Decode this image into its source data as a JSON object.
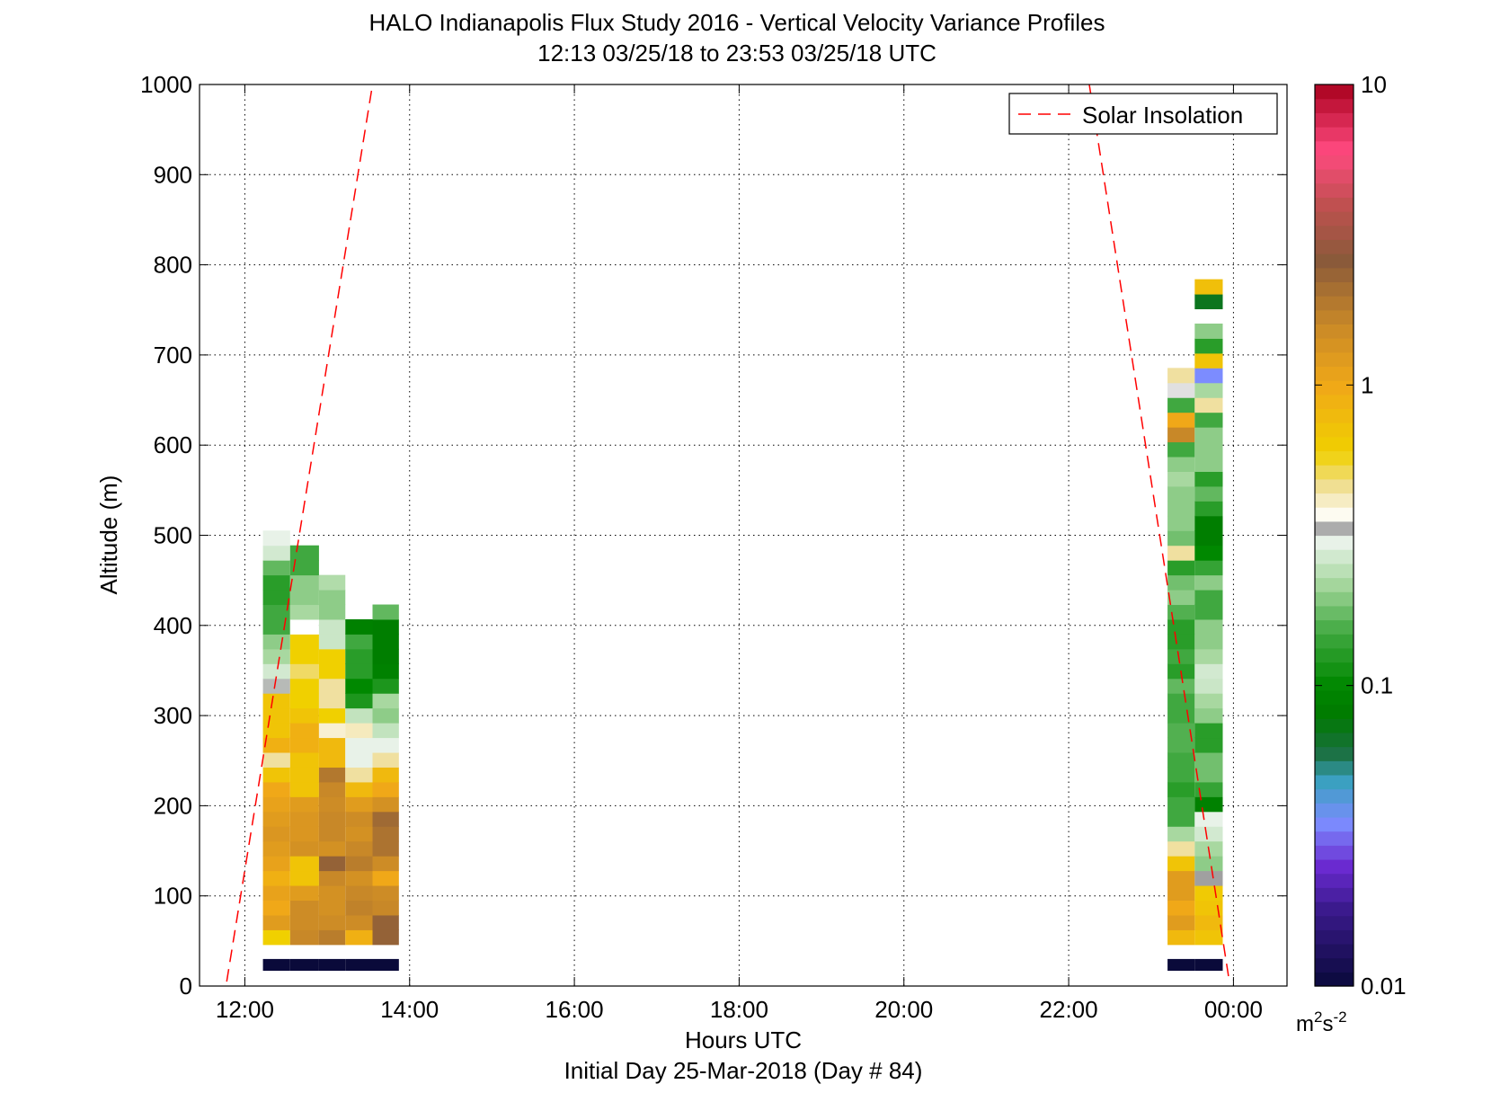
{
  "chart_data": {
    "type": "heatmap",
    "title": "HALO Indianapolis Flux Study 2016 - Vertical Velocity Variance Profiles",
    "subtitle": "12:13 03/25/18 to 23:53 03/25/18  UTC",
    "xlabel": "Hours UTC",
    "xlabel2": "Initial Day 25-Mar-2018 (Day # 84)",
    "ylabel": "Altitude (m)",
    "x_ticks": [
      12,
      14,
      16,
      18,
      20,
      22,
      24
    ],
    "x_tick_labels": [
      "12:00",
      "14:00",
      "16:00",
      "18:00",
      "20:00",
      "22:00",
      "00:00"
    ],
    "xlim": [
      11.45,
      24.65
    ],
    "y_ticks": [
      0,
      100,
      200,
      300,
      400,
      500,
      600,
      700,
      800,
      900,
      1000
    ],
    "y_tick_labels": [
      "0",
      "100",
      "200",
      "300",
      "400",
      "500",
      "600",
      "700",
      "800",
      "900",
      "1000"
    ],
    "ylim": [
      0,
      1000
    ],
    "grid": true,
    "colorbar": {
      "scale": "log",
      "range": [
        0.01,
        10
      ],
      "tick_values": [
        0.01,
        0.1,
        1,
        10
      ],
      "tick_labels": [
        "0.01",
        "0.1",
        "1",
        "10"
      ],
      "unit_base": "m",
      "unit_exp1": "2",
      "unit_mid": "s",
      "unit_exp2": "-2",
      "stops": [
        {
          "v": 0.01,
          "color": "#0a0a3a"
        },
        {
          "v": 0.018,
          "color": "#3a1a8c"
        },
        {
          "v": 0.025,
          "color": "#6a2ad0"
        },
        {
          "v": 0.035,
          "color": "#7c8cff"
        },
        {
          "v": 0.048,
          "color": "#3aa0c0"
        },
        {
          "v": 0.06,
          "color": "#1a7040"
        },
        {
          "v": 0.08,
          "color": "#007a00"
        },
        {
          "v": 0.1,
          "color": "#008800"
        },
        {
          "v": 0.15,
          "color": "#40a840"
        },
        {
          "v": 0.22,
          "color": "#a8d8a0"
        },
        {
          "v": 0.3,
          "color": "#e8f2e8"
        },
        {
          "v": 0.33,
          "color": "#a0a0a0"
        },
        {
          "v": 0.36,
          "color": "#ffffff"
        },
        {
          "v": 0.45,
          "color": "#f0e0a0"
        },
        {
          "v": 0.6,
          "color": "#f0d000"
        },
        {
          "v": 1.0,
          "color": "#f0a818"
        },
        {
          "v": 1.6,
          "color": "#c88828"
        },
        {
          "v": 2.6,
          "color": "#8a5a3a"
        },
        {
          "v": 4.0,
          "color": "#c05050"
        },
        {
          "v": 6.0,
          "color": "#ff4a80"
        },
        {
          "v": 10,
          "color": "#a8001c"
        }
      ]
    },
    "legend": {
      "entries": [
        "Solar Insolation"
      ],
      "position": "top-right"
    },
    "series": [
      {
        "name": "Solar Insolation",
        "style": "dashed",
        "color": "#ff0000",
        "segments": [
          [
            [
              11.78,
              5
            ],
            [
              13.55,
              1000
            ]
          ],
          [
            [
              22.25,
              1000
            ],
            [
              23.95,
              5
            ]
          ]
        ]
      }
    ],
    "profiles": [
      {
        "t0": 12.22,
        "t1": 12.55,
        "z0": 30,
        "base_value": 0.01,
        "dz": 16.4,
        "values": [
          0.6,
          1.2,
          1.0,
          1.1,
          0.9,
          1.1,
          1.2,
          1.3,
          1.2,
          1.1,
          1.0,
          0.7,
          0.45,
          0.9,
          0.7,
          0.7,
          0.7,
          0.32,
          0.27,
          0.22,
          0.2,
          0.15,
          0.15,
          0.13,
          0.13,
          0.17,
          0.27,
          0.3
        ]
      },
      {
        "t0": 12.55,
        "t1": 12.9,
        "z0": 30,
        "base_value": 0.01,
        "dz": 16.4,
        "values": [
          1.6,
          1.5,
          1.5,
          1.2,
          0.7,
          0.7,
          1.4,
          1.3,
          1.3,
          1.2,
          0.7,
          0.7,
          0.7,
          0.9,
          0.9,
          0.7,
          0.6,
          0.6,
          0.5,
          0.6,
          0.6,
          0.36,
          0.22,
          0.2,
          0.2,
          0.15,
          0.15
        ]
      },
      {
        "t0": 12.9,
        "t1": 13.22,
        "z0": 30,
        "base_value": 0.01,
        "dz": 16.4,
        "values": [
          1.8,
          1.5,
          1.4,
          1.4,
          1.6,
          2.4,
          1.4,
          1.6,
          1.6,
          1.5,
          1.6,
          1.9,
          0.8,
          0.8,
          0.4,
          0.6,
          0.45,
          0.45,
          0.6,
          0.6,
          0.26,
          0.26,
          0.2,
          0.2,
          0.23
        ]
      },
      {
        "t0": 13.22,
        "t1": 13.55,
        "z0": 30,
        "base_value": 0.01,
        "dz": 16.4,
        "values": [
          0.9,
          1.5,
          1.7,
          1.6,
          1.4,
          1.8,
          1.6,
          1.4,
          1.5,
          1.2,
          0.8,
          0.45,
          0.3,
          0.3,
          0.42,
          0.25,
          0.12,
          0.1,
          0.13,
          0.13,
          0.15,
          0.09
        ]
      },
      {
        "t0": 13.55,
        "t1": 13.87,
        "z0": 30,
        "base_value": 0.01,
        "dz": 16.4,
        "values": [
          2.4,
          2.4,
          1.6,
          1.5,
          1.0,
          1.5,
          2.0,
          2.0,
          2.2,
          1.4,
          1.0,
          0.8,
          0.45,
          0.3,
          0.25,
          0.2,
          0.22,
          0.12,
          0.09,
          0.085,
          0.085,
          0.085,
          0.17
        ]
      },
      {
        "t0": 23.2,
        "t1": 23.53,
        "z0": 30,
        "base_value": 0.01,
        "dz": 16.4,
        "values": [
          0.8,
          1.2,
          1.0,
          1.2,
          1.2,
          0.7,
          0.45,
          0.22,
          0.15,
          0.15,
          0.13,
          0.15,
          0.15,
          0.16,
          0.16,
          0.15,
          0.15,
          0.17,
          0.13,
          0.15,
          0.13,
          0.13,
          0.16,
          0.2,
          0.18,
          0.13,
          0.45,
          0.18,
          0.2,
          0.2,
          0.2,
          0.22,
          0.2,
          0.15,
          1.6,
          1.0,
          0.15,
          0.35,
          0.45,
          null,
          null,
          null,
          null,
          null,
          null
        ]
      },
      {
        "t0": 23.53,
        "t1": 23.87,
        "z0": 30,
        "base_value": 0.01,
        "dz": 16.4,
        "values": [
          0.7,
          0.8,
          0.7,
          0.65,
          0.33,
          0.2,
          0.22,
          0.27,
          0.3,
          0.09,
          0.14,
          0.18,
          0.18,
          0.13,
          0.13,
          0.2,
          0.22,
          0.26,
          0.27,
          0.22,
          0.2,
          0.2,
          0.15,
          0.15,
          0.2,
          0.14,
          0.1,
          0.085,
          0.085,
          0.13,
          0.17,
          0.13,
          0.2,
          0.2,
          0.2,
          0.15,
          0.45,
          0.22,
          0.035,
          0.7,
          0.13,
          0.2,
          null,
          0.07,
          0.75
        ]
      }
    ]
  }
}
